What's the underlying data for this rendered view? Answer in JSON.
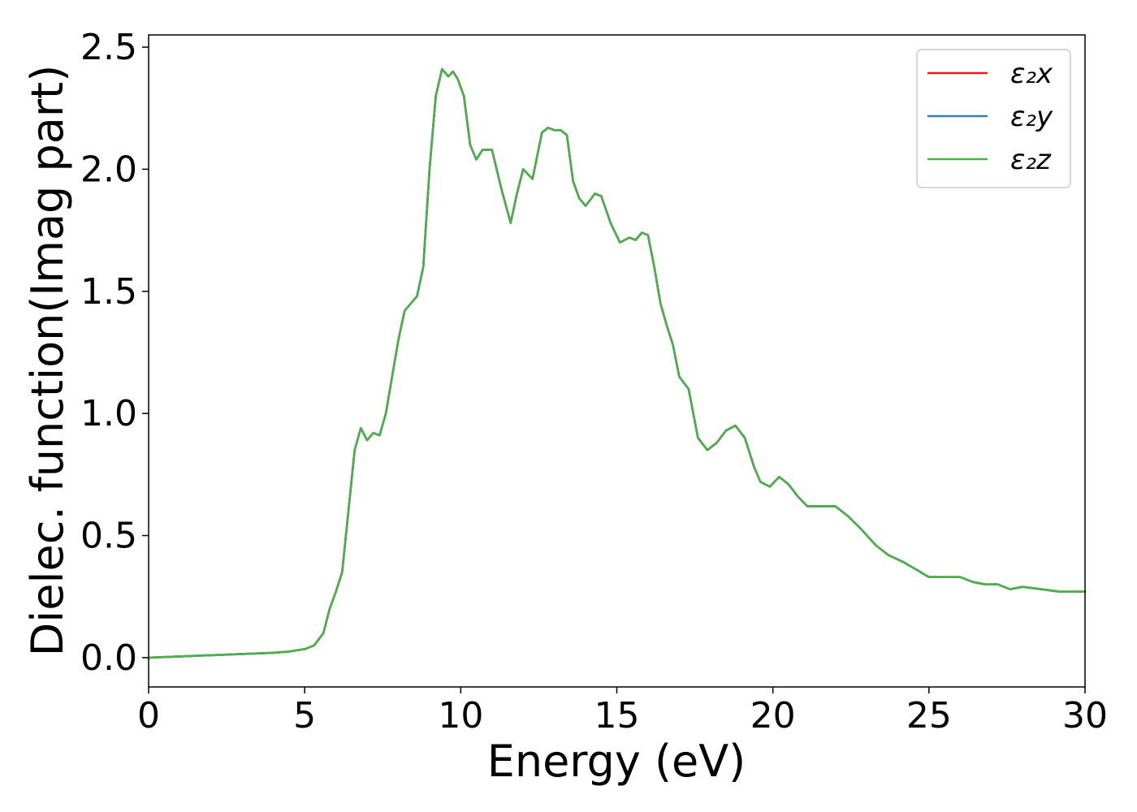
{
  "chart_data": {
    "type": "line",
    "title": "",
    "xlabel": "Energy (eV)",
    "ylabel": "Dielec. function(Imag part)",
    "xlim": [
      0,
      30
    ],
    "ylim": [
      -0.12,
      2.55
    ],
    "x_ticks": [
      "0",
      "5",
      "10",
      "15",
      "20",
      "25",
      "30"
    ],
    "y_ticks": [
      "0.0",
      "0.5",
      "1.0",
      "1.5",
      "2.0",
      "2.5"
    ],
    "grid": false,
    "legend_position": "top-right",
    "series": [
      {
        "name": "ε₂x",
        "color": "#e41a1c",
        "x": [
          0,
          1,
          2,
          3,
          4,
          4.5,
          5,
          5.3,
          5.6,
          5.8,
          6.0,
          6.2,
          6.4,
          6.6,
          6.8,
          7.0,
          7.2,
          7.4,
          7.6,
          7.8,
          8.0,
          8.2,
          8.4,
          8.6,
          8.8,
          9.0,
          9.2,
          9.4,
          9.6,
          9.75,
          9.9,
          10.1,
          10.3,
          10.5,
          10.7,
          10.9,
          11.0,
          11.3,
          11.6,
          11.8,
          12.0,
          12.3,
          12.6,
          12.8,
          13.0,
          13.2,
          13.4,
          13.6,
          13.8,
          14.0,
          14.3,
          14.5,
          14.8,
          15.1,
          15.4,
          15.6,
          15.8,
          16.0,
          16.2,
          16.4,
          16.6,
          16.8,
          17.0,
          17.3,
          17.6,
          17.9,
          18.2,
          18.5,
          18.8,
          19.1,
          19.4,
          19.6,
          19.9,
          20.2,
          20.5,
          20.8,
          21.1,
          21.5,
          22.0,
          22.4,
          22.8,
          23.3,
          23.7,
          24.2,
          24.6,
          25.0,
          25.5,
          26.0,
          26.4,
          26.8,
          27.2,
          27.6,
          28.0,
          28.6,
          29.2,
          29.7,
          30.0
        ],
        "y": [
          0.0,
          0.005,
          0.01,
          0.015,
          0.02,
          0.025,
          0.035,
          0.05,
          0.1,
          0.2,
          0.27,
          0.35,
          0.6,
          0.85,
          0.94,
          0.89,
          0.92,
          0.91,
          1.0,
          1.15,
          1.3,
          1.42,
          1.45,
          1.48,
          1.6,
          2.0,
          2.3,
          2.41,
          2.38,
          2.4,
          2.37,
          2.3,
          2.1,
          2.04,
          2.08,
          2.08,
          2.08,
          1.92,
          1.78,
          1.9,
          2.0,
          1.96,
          2.15,
          2.17,
          2.16,
          2.16,
          2.14,
          1.95,
          1.88,
          1.85,
          1.9,
          1.89,
          1.78,
          1.7,
          1.72,
          1.71,
          1.74,
          1.73,
          1.6,
          1.45,
          1.36,
          1.28,
          1.15,
          1.1,
          0.9,
          0.85,
          0.88,
          0.93,
          0.95,
          0.9,
          0.78,
          0.72,
          0.7,
          0.74,
          0.71,
          0.66,
          0.62,
          0.62,
          0.62,
          0.58,
          0.53,
          0.46,
          0.42,
          0.39,
          0.36,
          0.33,
          0.33,
          0.33,
          0.31,
          0.3,
          0.3,
          0.28,
          0.29,
          0.28,
          0.27,
          0.27,
          0.27
        ]
      },
      {
        "name": "ε₂y",
        "color": "#377eb8",
        "x": [
          0,
          1,
          2,
          3,
          4,
          4.5,
          5,
          5.3,
          5.6,
          5.8,
          6.0,
          6.2,
          6.4,
          6.6,
          6.8,
          7.0,
          7.2,
          7.4,
          7.6,
          7.8,
          8.0,
          8.2,
          8.4,
          8.6,
          8.8,
          9.0,
          9.2,
          9.4,
          9.6,
          9.75,
          9.9,
          10.1,
          10.3,
          10.5,
          10.7,
          10.9,
          11.0,
          11.3,
          11.6,
          11.8,
          12.0,
          12.3,
          12.6,
          12.8,
          13.0,
          13.2,
          13.4,
          13.6,
          13.8,
          14.0,
          14.3,
          14.5,
          14.8,
          15.1,
          15.4,
          15.6,
          15.8,
          16.0,
          16.2,
          16.4,
          16.6,
          16.8,
          17.0,
          17.3,
          17.6,
          17.9,
          18.2,
          18.5,
          18.8,
          19.1,
          19.4,
          19.6,
          19.9,
          20.2,
          20.5,
          20.8,
          21.1,
          21.5,
          22.0,
          22.4,
          22.8,
          23.3,
          23.7,
          24.2,
          24.6,
          25.0,
          25.5,
          26.0,
          26.4,
          26.8,
          27.2,
          27.6,
          28.0,
          28.6,
          29.2,
          29.7,
          30.0
        ],
        "y": [
          0.0,
          0.005,
          0.01,
          0.015,
          0.02,
          0.025,
          0.035,
          0.05,
          0.1,
          0.2,
          0.27,
          0.35,
          0.6,
          0.85,
          0.94,
          0.89,
          0.92,
          0.91,
          1.0,
          1.15,
          1.3,
          1.42,
          1.45,
          1.48,
          1.6,
          2.0,
          2.3,
          2.41,
          2.38,
          2.4,
          2.37,
          2.3,
          2.1,
          2.04,
          2.08,
          2.08,
          2.08,
          1.92,
          1.78,
          1.9,
          2.0,
          1.96,
          2.15,
          2.17,
          2.16,
          2.16,
          2.14,
          1.95,
          1.88,
          1.85,
          1.9,
          1.89,
          1.78,
          1.7,
          1.72,
          1.71,
          1.74,
          1.73,
          1.6,
          1.45,
          1.36,
          1.28,
          1.15,
          1.1,
          0.9,
          0.85,
          0.88,
          0.93,
          0.95,
          0.9,
          0.78,
          0.72,
          0.7,
          0.74,
          0.71,
          0.66,
          0.62,
          0.62,
          0.62,
          0.58,
          0.53,
          0.46,
          0.42,
          0.39,
          0.36,
          0.33,
          0.33,
          0.33,
          0.31,
          0.3,
          0.3,
          0.28,
          0.29,
          0.28,
          0.27,
          0.27,
          0.27
        ]
      },
      {
        "name": "ε₂z",
        "color": "#4daf4a",
        "x": [
          0,
          1,
          2,
          3,
          4,
          4.5,
          5,
          5.3,
          5.6,
          5.8,
          6.0,
          6.2,
          6.4,
          6.6,
          6.8,
          7.0,
          7.2,
          7.4,
          7.6,
          7.8,
          8.0,
          8.2,
          8.4,
          8.6,
          8.8,
          9.0,
          9.2,
          9.4,
          9.6,
          9.75,
          9.9,
          10.1,
          10.3,
          10.5,
          10.7,
          10.9,
          11.0,
          11.3,
          11.6,
          11.8,
          12.0,
          12.3,
          12.6,
          12.8,
          13.0,
          13.2,
          13.4,
          13.6,
          13.8,
          14.0,
          14.3,
          14.5,
          14.8,
          15.1,
          15.4,
          15.6,
          15.8,
          16.0,
          16.2,
          16.4,
          16.6,
          16.8,
          17.0,
          17.3,
          17.6,
          17.9,
          18.2,
          18.5,
          18.8,
          19.1,
          19.4,
          19.6,
          19.9,
          20.2,
          20.5,
          20.8,
          21.1,
          21.5,
          22.0,
          22.4,
          22.8,
          23.3,
          23.7,
          24.2,
          24.6,
          25.0,
          25.5,
          26.0,
          26.4,
          26.8,
          27.2,
          27.6,
          28.0,
          28.6,
          29.2,
          29.7,
          30.0
        ],
        "y": [
          0.0,
          0.005,
          0.01,
          0.015,
          0.02,
          0.025,
          0.035,
          0.05,
          0.1,
          0.2,
          0.27,
          0.35,
          0.6,
          0.85,
          0.94,
          0.89,
          0.92,
          0.91,
          1.0,
          1.15,
          1.3,
          1.42,
          1.45,
          1.48,
          1.6,
          2.0,
          2.3,
          2.41,
          2.38,
          2.4,
          2.37,
          2.3,
          2.1,
          2.04,
          2.08,
          2.08,
          2.08,
          1.92,
          1.78,
          1.9,
          2.0,
          1.96,
          2.15,
          2.17,
          2.16,
          2.16,
          2.14,
          1.95,
          1.88,
          1.85,
          1.9,
          1.89,
          1.78,
          1.7,
          1.72,
          1.71,
          1.74,
          1.73,
          1.6,
          1.45,
          1.36,
          1.28,
          1.15,
          1.1,
          0.9,
          0.85,
          0.88,
          0.93,
          0.95,
          0.9,
          0.78,
          0.72,
          0.7,
          0.74,
          0.71,
          0.66,
          0.62,
          0.62,
          0.62,
          0.58,
          0.53,
          0.46,
          0.42,
          0.39,
          0.36,
          0.33,
          0.33,
          0.33,
          0.31,
          0.3,
          0.3,
          0.28,
          0.29,
          0.28,
          0.27,
          0.27,
          0.27
        ]
      }
    ]
  }
}
